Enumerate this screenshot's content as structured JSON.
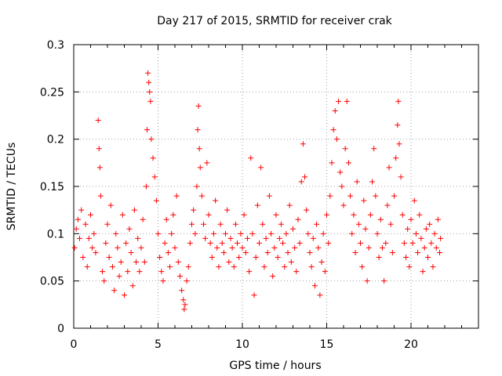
{
  "chart_data": {
    "type": "scatter",
    "title": "Day 217 of 2015, SRMTID for receiver crak",
    "xlabel": "GPS time / hours",
    "ylabel": "SRMTID / TECUs",
    "xlim": [
      0,
      24
    ],
    "ylim": [
      0,
      0.3
    ],
    "xticks": [
      "0",
      "5",
      "10",
      "15",
      "20"
    ],
    "yticks": [
      "0",
      "0.05",
      "0.1",
      "0.15",
      "0.2",
      "0.25",
      "0.3"
    ],
    "grid": true,
    "marker": "plus",
    "color": "#ff0000",
    "series": [
      {
        "values": [
          [
            0.05,
            0.085
          ],
          [
            0.15,
            0.105
          ],
          [
            0.25,
            0.115
          ],
          [
            0.35,
            0.095
          ],
          [
            0.45,
            0.125
          ],
          [
            0.55,
            0.075
          ],
          [
            0.7,
            0.11
          ],
          [
            0.8,
            0.065
          ],
          [
            0.9,
            0.095
          ],
          [
            1.0,
            0.12
          ],
          [
            1.1,
            0.085
          ],
          [
            1.2,
            0.1
          ],
          [
            1.3,
            0.08
          ],
          [
            1.45,
            0.22
          ],
          [
            1.5,
            0.19
          ],
          [
            1.55,
            0.17
          ],
          [
            1.6,
            0.14
          ],
          [
            1.7,
            0.06
          ],
          [
            1.8,
            0.05
          ],
          [
            1.9,
            0.09
          ],
          [
            2.0,
            0.11
          ],
          [
            2.1,
            0.075
          ],
          [
            2.2,
            0.13
          ],
          [
            2.3,
            0.065
          ],
          [
            2.4,
            0.04
          ],
          [
            2.5,
            0.1
          ],
          [
            2.6,
            0.085
          ],
          [
            2.7,
            0.055
          ],
          [
            2.8,
            0.07
          ],
          [
            2.9,
            0.12
          ],
          [
            3.0,
            0.035
          ],
          [
            3.1,
            0.09
          ],
          [
            3.2,
            0.06
          ],
          [
            3.3,
            0.105
          ],
          [
            3.4,
            0.08
          ],
          [
            3.5,
            0.045
          ],
          [
            3.6,
            0.125
          ],
          [
            3.7,
            0.07
          ],
          [
            3.8,
            0.095
          ],
          [
            3.9,
            0.06
          ],
          [
            4.0,
            0.085
          ],
          [
            4.1,
            0.115
          ],
          [
            4.2,
            0.07
          ],
          [
            4.3,
            0.15
          ],
          [
            4.35,
            0.21
          ],
          [
            4.4,
            0.27
          ],
          [
            4.45,
            0.26
          ],
          [
            4.5,
            0.25
          ],
          [
            4.55,
            0.24
          ],
          [
            4.6,
            0.2
          ],
          [
            4.7,
            0.18
          ],
          [
            4.8,
            0.16
          ],
          [
            4.9,
            0.135
          ],
          [
            5.0,
            0.1
          ],
          [
            5.1,
            0.075
          ],
          [
            5.2,
            0.06
          ],
          [
            5.3,
            0.05
          ],
          [
            5.4,
            0.09
          ],
          [
            5.5,
            0.115
          ],
          [
            5.6,
            0.08
          ],
          [
            5.7,
            0.065
          ],
          [
            5.8,
            0.1
          ],
          [
            5.9,
            0.12
          ],
          [
            6.0,
            0.085
          ],
          [
            6.1,
            0.14
          ],
          [
            6.2,
            0.07
          ],
          [
            6.3,
            0.055
          ],
          [
            6.4,
            0.04
          ],
          [
            6.5,
            0.03
          ],
          [
            6.55,
            0.02
          ],
          [
            6.6,
            0.025
          ],
          [
            6.7,
            0.05
          ],
          [
            6.8,
            0.065
          ],
          [
            6.9,
            0.09
          ],
          [
            7.0,
            0.11
          ],
          [
            7.1,
            0.125
          ],
          [
            7.2,
            0.1
          ],
          [
            7.3,
            0.15
          ],
          [
            7.35,
            0.21
          ],
          [
            7.4,
            0.235
          ],
          [
            7.45,
            0.19
          ],
          [
            7.5,
            0.17
          ],
          [
            7.6,
            0.14
          ],
          [
            7.7,
            0.11
          ],
          [
            7.8,
            0.095
          ],
          [
            7.9,
            0.175
          ],
          [
            8.0,
            0.12
          ],
          [
            8.1,
            0.09
          ],
          [
            8.2,
            0.075
          ],
          [
            8.3,
            0.1
          ],
          [
            8.4,
            0.135
          ],
          [
            8.5,
            0.085
          ],
          [
            8.6,
            0.065
          ],
          [
            8.7,
            0.11
          ],
          [
            8.8,
            0.09
          ],
          [
            8.9,
            0.08
          ],
          [
            9.0,
            0.1
          ],
          [
            9.1,
            0.125
          ],
          [
            9.2,
            0.07
          ],
          [
            9.3,
            0.095
          ],
          [
            9.4,
            0.085
          ],
          [
            9.5,
            0.065
          ],
          [
            9.6,
            0.11
          ],
          [
            9.7,
            0.09
          ],
          [
            9.8,
            0.075
          ],
          [
            9.9,
            0.1
          ],
          [
            10.0,
            0.085
          ],
          [
            10.1,
            0.12
          ],
          [
            10.2,
            0.08
          ],
          [
            10.3,
            0.095
          ],
          [
            10.4,
            0.06
          ],
          [
            10.5,
            0.18
          ],
          [
            10.6,
            0.1
          ],
          [
            10.7,
            0.035
          ],
          [
            10.8,
            0.075
          ],
          [
            10.9,
            0.13
          ],
          [
            11.0,
            0.09
          ],
          [
            11.1,
            0.17
          ],
          [
            11.2,
            0.11
          ],
          [
            11.3,
            0.065
          ],
          [
            11.4,
            0.095
          ],
          [
            11.5,
            0.08
          ],
          [
            11.6,
            0.14
          ],
          [
            11.7,
            0.1
          ],
          [
            11.8,
            0.055
          ],
          [
            11.9,
            0.085
          ],
          [
            12.0,
            0.12
          ],
          [
            12.1,
            0.075
          ],
          [
            12.2,
            0.095
          ],
          [
            12.3,
            0.11
          ],
          [
            12.4,
            0.09
          ],
          [
            12.5,
            0.065
          ],
          [
            12.6,
            0.1
          ],
          [
            12.7,
            0.08
          ],
          [
            12.8,
            0.13
          ],
          [
            12.9,
            0.07
          ],
          [
            13.0,
            0.105
          ],
          [
            13.1,
            0.085
          ],
          [
            13.2,
            0.06
          ],
          [
            13.3,
            0.115
          ],
          [
            13.4,
            0.09
          ],
          [
            13.5,
            0.155
          ],
          [
            13.6,
            0.195
          ],
          [
            13.7,
            0.16
          ],
          [
            13.8,
            0.125
          ],
          [
            13.9,
            0.1
          ],
          [
            14.0,
            0.08
          ],
          [
            14.1,
            0.065
          ],
          [
            14.2,
            0.095
          ],
          [
            14.3,
            0.045
          ],
          [
            14.4,
            0.11
          ],
          [
            14.5,
            0.085
          ],
          [
            14.6,
            0.035
          ],
          [
            14.7,
            0.07
          ],
          [
            14.8,
            0.1
          ],
          [
            14.9,
            0.06
          ],
          [
            15.0,
            0.12
          ],
          [
            15.1,
            0.09
          ],
          [
            15.2,
            0.14
          ],
          [
            15.3,
            0.175
          ],
          [
            15.4,
            0.21
          ],
          [
            15.5,
            0.23
          ],
          [
            15.6,
            0.2
          ],
          [
            15.7,
            0.24
          ],
          [
            15.8,
            0.165
          ],
          [
            15.9,
            0.15
          ],
          [
            16.0,
            0.13
          ],
          [
            16.1,
            0.19
          ],
          [
            16.2,
            0.24
          ],
          [
            16.3,
            0.175
          ],
          [
            16.4,
            0.14
          ],
          [
            16.5,
            0.1
          ],
          [
            16.6,
            0.12
          ],
          [
            16.7,
            0.08
          ],
          [
            16.8,
            0.155
          ],
          [
            16.9,
            0.11
          ],
          [
            17.0,
            0.09
          ],
          [
            17.1,
            0.065
          ],
          [
            17.2,
            0.135
          ],
          [
            17.3,
            0.105
          ],
          [
            17.4,
            0.05
          ],
          [
            17.5,
            0.085
          ],
          [
            17.6,
            0.12
          ],
          [
            17.7,
            0.155
          ],
          [
            17.8,
            0.19
          ],
          [
            17.9,
            0.14
          ],
          [
            18.0,
            0.1
          ],
          [
            18.1,
            0.075
          ],
          [
            18.2,
            0.115
          ],
          [
            18.3,
            0.085
          ],
          [
            18.4,
            0.05
          ],
          [
            18.5,
            0.09
          ],
          [
            18.6,
            0.13
          ],
          [
            18.7,
            0.17
          ],
          [
            18.8,
            0.11
          ],
          [
            18.9,
            0.08
          ],
          [
            19.0,
            0.14
          ],
          [
            19.1,
            0.18
          ],
          [
            19.2,
            0.215
          ],
          [
            19.25,
            0.24
          ],
          [
            19.3,
            0.195
          ],
          [
            19.4,
            0.16
          ],
          [
            19.5,
            0.12
          ],
          [
            19.6,
            0.09
          ],
          [
            19.7,
            0.075
          ],
          [
            19.8,
            0.105
          ],
          [
            19.9,
            0.065
          ],
          [
            20.0,
            0.115
          ],
          [
            20.1,
            0.09
          ],
          [
            20.2,
            0.135
          ],
          [
            20.3,
            0.1
          ],
          [
            20.4,
            0.08
          ],
          [
            20.5,
            0.12
          ],
          [
            20.6,
            0.095
          ],
          [
            20.7,
            0.06
          ],
          [
            20.8,
            0.085
          ],
          [
            20.9,
            0.105
          ],
          [
            21.0,
            0.075
          ],
          [
            21.1,
            0.11
          ],
          [
            21.2,
            0.09
          ],
          [
            21.3,
            0.065
          ],
          [
            21.4,
            0.1
          ],
          [
            21.5,
            0.085
          ],
          [
            21.6,
            0.115
          ],
          [
            21.7,
            0.08
          ],
          [
            21.75,
            0.095
          ]
        ]
      }
    ]
  }
}
